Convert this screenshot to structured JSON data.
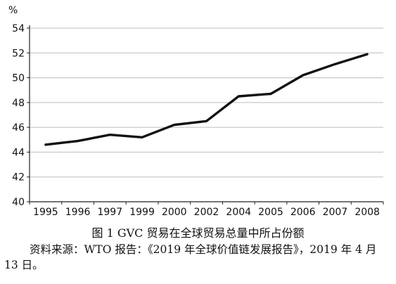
{
  "caption": "图 1 GVC 贸易在全球贸易总量中所占份额",
  "source": "资料来源：WTO 报告：《2019 年全球价值链发展报告》，2019 年 4 月 13 日。",
  "chart_data": {
    "type": "line",
    "y_unit": "%",
    "categories": [
      "1995",
      "1996",
      "1997",
      "1999",
      "2000",
      "2002",
      "2004",
      "2005",
      "2006",
      "2007",
      "2008"
    ],
    "series": [
      {
        "values": [
          44.6,
          44.9,
          45.4,
          45.2,
          46.2,
          46.5,
          48.5,
          48.7,
          50.2,
          51.1,
          51.9
        ]
      }
    ],
    "ylim": [
      40,
      54
    ],
    "yticks": [
      40,
      42,
      44,
      46,
      48,
      50,
      52,
      54
    ],
    "grid": true,
    "line_color": "#111111",
    "grid_color": "#bdbdbd"
  }
}
